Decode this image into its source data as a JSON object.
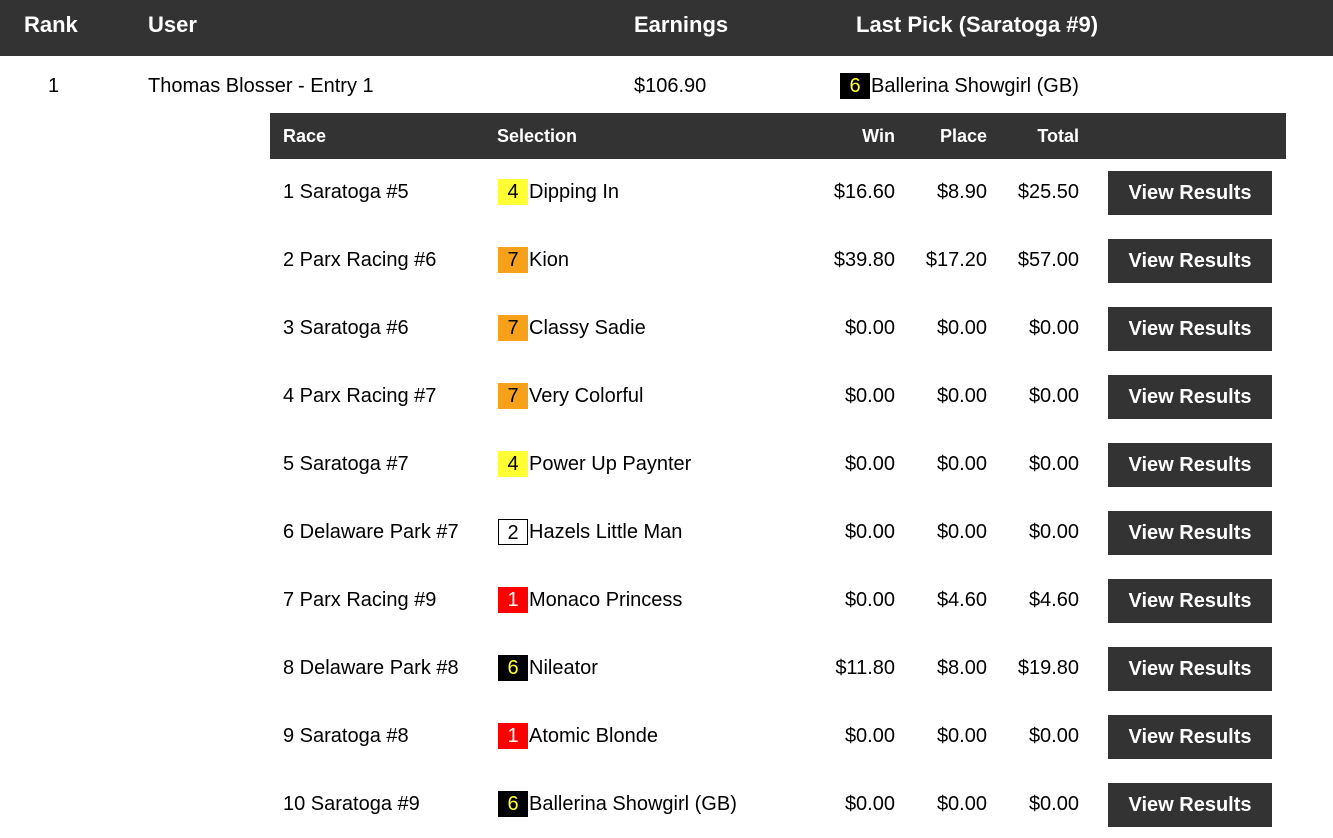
{
  "header": {
    "rank": "Rank",
    "user": "User",
    "earnings": "Earnings",
    "last_pick": "Last Pick (Saratoga #9)"
  },
  "entry": {
    "rank": "1",
    "user": "Thomas Blosser - Entry 1",
    "earnings": "$106.90",
    "last_pick_number": "6",
    "last_pick_color": "black",
    "last_pick_horse": "Ballerina Showgirl (GB)"
  },
  "sub_header": {
    "race": "Race",
    "selection": "Selection",
    "win": "Win",
    "place": "Place",
    "total": "Total"
  },
  "picks": [
    {
      "race": "1 Saratoga #5",
      "number": "4",
      "color": "yellow",
      "horse": "Dipping In",
      "win": "$16.60",
      "place": "$8.90",
      "total": "$25.50",
      "button": "View Results"
    },
    {
      "race": "2 Parx Racing #6",
      "number": "7",
      "color": "orange",
      "horse": "Kion",
      "win": "$39.80",
      "place": "$17.20",
      "total": "$57.00",
      "button": "View Results"
    },
    {
      "race": "3 Saratoga #6",
      "number": "7",
      "color": "orange",
      "horse": "Classy Sadie",
      "win": "$0.00",
      "place": "$0.00",
      "total": "$0.00",
      "button": "View Results"
    },
    {
      "race": "4 Parx Racing #7",
      "number": "7",
      "color": "orange",
      "horse": "Very Colorful",
      "win": "$0.00",
      "place": "$0.00",
      "total": "$0.00",
      "button": "View Results"
    },
    {
      "race": "5 Saratoga #7",
      "number": "4",
      "color": "yellow",
      "horse": "Power Up Paynter",
      "win": "$0.00",
      "place": "$0.00",
      "total": "$0.00",
      "button": "View Results"
    },
    {
      "race": "6 Delaware Park #7",
      "number": "2",
      "color": "white",
      "horse": "Hazels Little Man",
      "win": "$0.00",
      "place": "$0.00",
      "total": "$0.00",
      "button": "View Results"
    },
    {
      "race": "7 Parx Racing #9",
      "number": "1",
      "color": "red",
      "horse": "Monaco Princess",
      "win": "$0.00",
      "place": "$4.60",
      "total": "$4.60",
      "button": "View Results"
    },
    {
      "race": "8 Delaware Park #8",
      "number": "6",
      "color": "black",
      "horse": "Nileator",
      "win": "$11.80",
      "place": "$8.00",
      "total": "$19.80",
      "button": "View Results"
    },
    {
      "race": "9 Saratoga #8",
      "number": "1",
      "color": "red",
      "horse": "Atomic Blonde",
      "win": "$0.00",
      "place": "$0.00",
      "total": "$0.00",
      "button": "View Results"
    },
    {
      "race": "10 Saratoga #9",
      "number": "6",
      "color": "black",
      "horse": "Ballerina Showgirl (GB)",
      "win": "$0.00",
      "place": "$0.00",
      "total": "$0.00",
      "button": "View Results"
    }
  ],
  "colors": {
    "header_bg": "#333333",
    "yellow": "#ffff33",
    "orange": "#f7a11a",
    "white": "#ffffff",
    "red": "#ff0000",
    "black": "#000000"
  }
}
